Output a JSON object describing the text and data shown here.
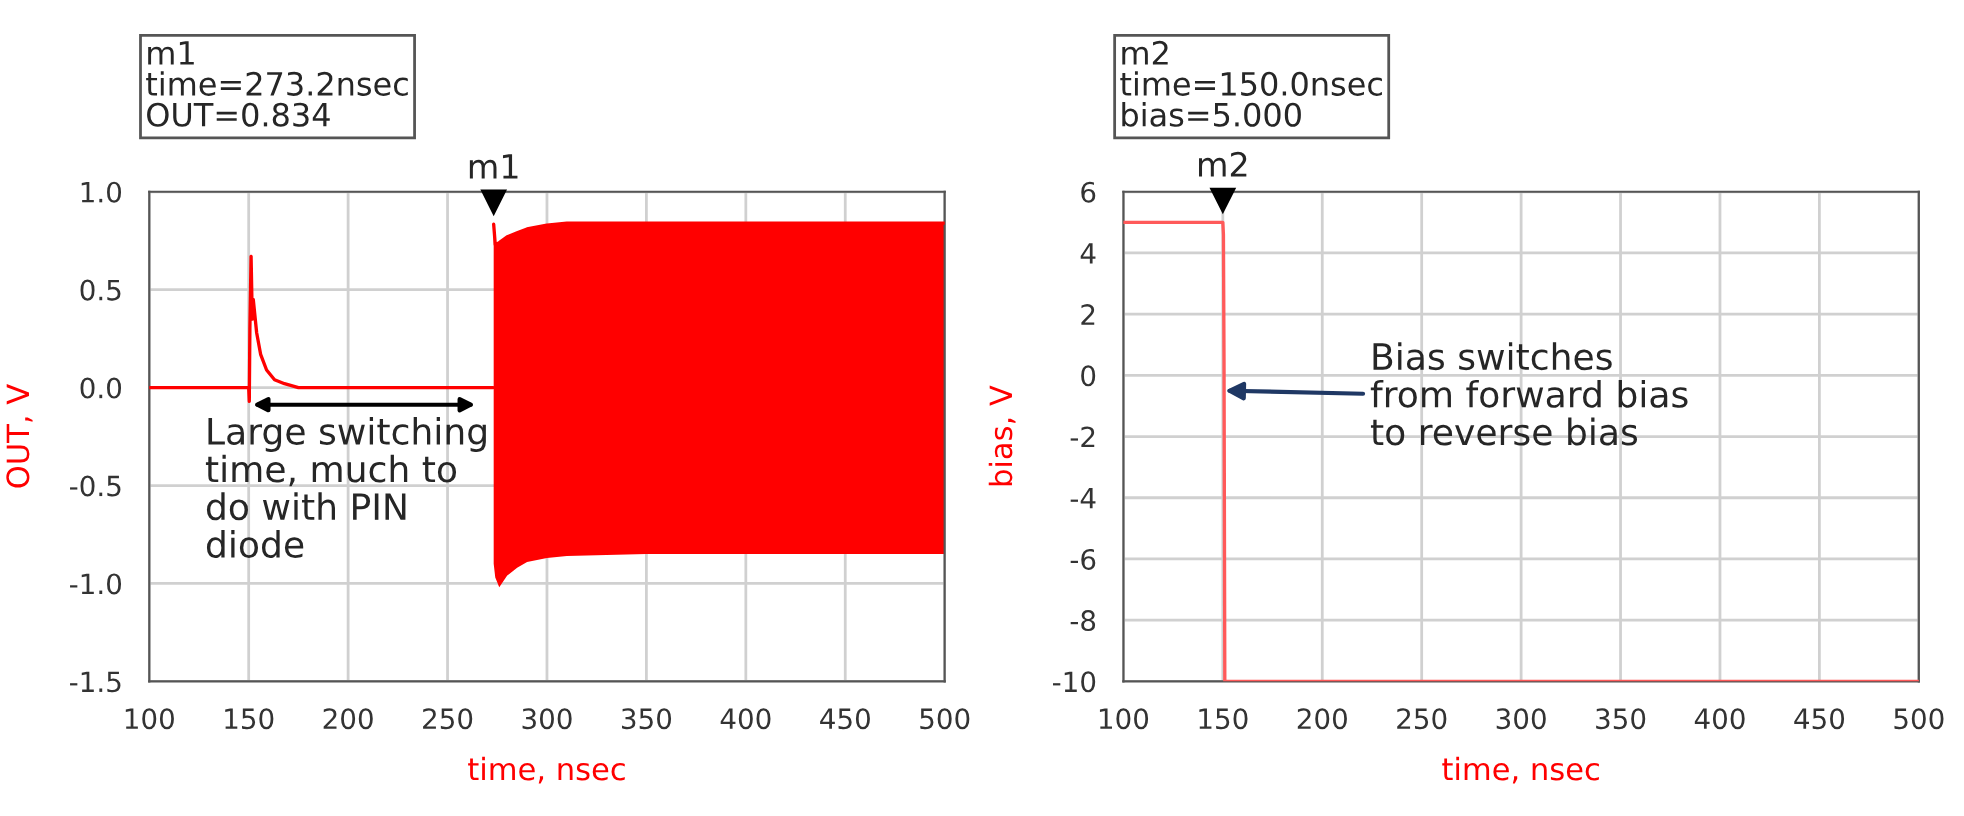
{
  "chart_data": [
    {
      "type": "line",
      "xlabel": "time, nsec",
      "ylabel": "OUT, V",
      "xlim": [
        100,
        500
      ],
      "xticks": [
        100,
        150,
        200,
        250,
        300,
        350,
        400,
        450,
        500
      ],
      "ylim": [
        -1.5,
        1.0
      ],
      "yticks": [
        {
          "value": -1.5,
          "label": "-1.5"
        },
        {
          "value": -1.0,
          "label": "-1.0"
        },
        {
          "value": -0.5,
          "label": "-0.5"
        },
        {
          "value": 0,
          "label": "0.0"
        },
        {
          "value": 0.5,
          "label": "0.5"
        },
        {
          "value": 1.0,
          "label": "1.0"
        }
      ],
      "grid": true,
      "marker": "none",
      "line_style": "solid",
      "series": [
        {
          "color": "#ff0000",
          "x": [
            100,
            150,
            150.3,
            150.6,
            151.2,
            151.8,
            152.3,
            153,
            154,
            156,
            159,
            163,
            168,
            175,
            200,
            273
          ],
          "values": [
            0,
            0,
            -0.07,
            0.3,
            0.67,
            0.35,
            0.45,
            0.38,
            0.28,
            0.17,
            0.09,
            0.04,
            0.02,
            0,
            0,
            0
          ]
        },
        {
          "color": "#ff0000",
          "x": [
            273.2,
            274,
            276,
            280,
            285,
            290,
            300,
            310,
            350,
            400,
            450,
            500
          ],
          "values": [
            0.834,
            0.73,
            0.74,
            0.77,
            0.79,
            0.81,
            0.83,
            0.84,
            0.84,
            0.84,
            0.84,
            0.84
          ],
          "upper": [
            0.834,
            0.73,
            0.74,
            0.77,
            0.79,
            0.81,
            0.83,
            0.84,
            0.84,
            0.84,
            0.84,
            0.84
          ],
          "lower": [
            -0.9,
            -0.97,
            -1.02,
            -0.96,
            -0.92,
            -0.89,
            -0.87,
            -0.86,
            -0.85,
            -0.85,
            -0.85,
            -0.85
          ]
        }
      ],
      "annotations": [
        "m1\ntime=273.2nsec\nOUT=0.834",
        {
          "text": "m1",
          "x": 273.2,
          "y": 0.834
        },
        "Large switching\ntime, much to\ndo with PIN\ndiode"
      ]
    },
    {
      "type": "line",
      "xlabel": "time, nsec",
      "ylabel": "bias, V",
      "xlim": [
        100,
        500
      ],
      "xticks": [
        100,
        150,
        200,
        250,
        300,
        350,
        400,
        450,
        500
      ],
      "ylim": [
        -10,
        6
      ],
      "yticks": [
        -10,
        -8,
        -6,
        -4,
        -2,
        0,
        2,
        4,
        6
      ],
      "grid": true,
      "marker": "none",
      "line_style": "solid",
      "series": [
        {
          "color": "#ff5a5a",
          "x": [
            100,
            150,
            150.3,
            150.6,
            151,
            200,
            300,
            400,
            500
          ],
          "values": [
            5,
            5,
            4.6,
            0.5,
            -10,
            -10,
            -10,
            -10,
            -10
          ]
        }
      ],
      "annotations": [
        "m2\ntime=150.0nsec\nbias=5.000",
        {
          "text": "m2",
          "x": 150,
          "y": 5
        },
        {
          "text": "Bias switches\nfrom forward bias\nto reverse bias",
          "x": 151,
          "y": -0.5
        }
      ]
    }
  ]
}
